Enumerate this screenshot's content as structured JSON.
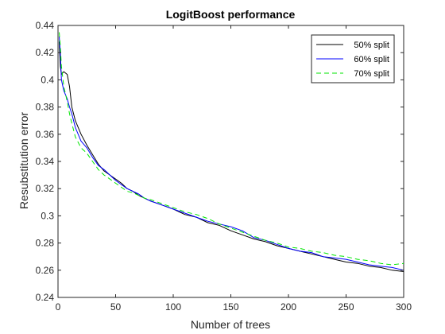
{
  "chart_data": {
    "type": "line",
    "title": "LogitBoost performance",
    "xlabel": "Number of trees",
    "ylabel": "Resubstitution error",
    "xlim": [
      0,
      300
    ],
    "ylim": [
      0.24,
      0.44
    ],
    "xticks": [
      0,
      50,
      100,
      150,
      200,
      250,
      300
    ],
    "yticks": [
      0.24,
      0.26,
      0.28,
      0.3,
      0.32,
      0.34,
      0.36,
      0.38,
      0.4,
      0.42,
      0.44
    ],
    "xtick_labels": [
      "0",
      "50",
      "100",
      "150",
      "200",
      "250",
      "300"
    ],
    "ytick_labels": [
      "0.24",
      "0.26",
      "0.28",
      "0.3",
      "0.32",
      "0.34",
      "0.36",
      "0.38",
      "0.4",
      "0.42",
      "0.44"
    ],
    "grid": false,
    "legend_position": "top-right",
    "series": [
      {
        "name": "50% split",
        "color": "#000000",
        "line_style": "solid",
        "x": [
          1,
          2,
          3,
          5,
          8,
          10,
          12,
          15,
          20,
          25,
          30,
          35,
          40,
          45,
          50,
          55,
          60,
          65,
          70,
          75,
          80,
          90,
          100,
          110,
          120,
          130,
          140,
          150,
          160,
          170,
          180,
          190,
          200,
          210,
          220,
          230,
          240,
          250,
          260,
          270,
          280,
          290,
          300
        ],
        "y": [
          0.428,
          0.41,
          0.404,
          0.406,
          0.404,
          0.395,
          0.38,
          0.37,
          0.36,
          0.352,
          0.345,
          0.338,
          0.333,
          0.33,
          0.327,
          0.324,
          0.32,
          0.318,
          0.315,
          0.313,
          0.311,
          0.308,
          0.305,
          0.301,
          0.299,
          0.295,
          0.293,
          0.289,
          0.286,
          0.283,
          0.281,
          0.278,
          0.276,
          0.274,
          0.272,
          0.27,
          0.268,
          0.266,
          0.265,
          0.263,
          0.262,
          0.26,
          0.259
        ]
      },
      {
        "name": "60% split",
        "color": "#0000ff",
        "line_style": "solid",
        "x": [
          1,
          2,
          3,
          5,
          8,
          10,
          12,
          15,
          20,
          25,
          30,
          35,
          40,
          45,
          50,
          55,
          60,
          65,
          70,
          75,
          80,
          90,
          100,
          110,
          120,
          130,
          140,
          150,
          160,
          170,
          180,
          190,
          200,
          210,
          220,
          230,
          240,
          250,
          260,
          270,
          280,
          290,
          300
        ],
        "y": [
          0.432,
          0.42,
          0.4,
          0.392,
          0.386,
          0.38,
          0.375,
          0.365,
          0.355,
          0.35,
          0.343,
          0.337,
          0.334,
          0.33,
          0.326,
          0.323,
          0.32,
          0.318,
          0.316,
          0.313,
          0.311,
          0.308,
          0.305,
          0.302,
          0.299,
          0.296,
          0.294,
          0.292,
          0.289,
          0.284,
          0.282,
          0.279,
          0.276,
          0.274,
          0.273,
          0.27,
          0.269,
          0.268,
          0.266,
          0.264,
          0.263,
          0.262,
          0.26
        ]
      },
      {
        "name": "70% split",
        "color": "#00e600",
        "line_style": "dashed",
        "x": [
          1,
          2,
          3,
          5,
          8,
          10,
          12,
          15,
          20,
          25,
          30,
          35,
          40,
          45,
          50,
          55,
          60,
          65,
          70,
          75,
          80,
          90,
          100,
          110,
          120,
          130,
          140,
          150,
          160,
          170,
          180,
          190,
          200,
          210,
          220,
          230,
          240,
          250,
          260,
          270,
          280,
          290,
          300
        ],
        "y": [
          0.435,
          0.425,
          0.41,
          0.395,
          0.384,
          0.375,
          0.368,
          0.358,
          0.35,
          0.346,
          0.34,
          0.334,
          0.33,
          0.327,
          0.324,
          0.321,
          0.318,
          0.317,
          0.315,
          0.313,
          0.312,
          0.309,
          0.306,
          0.303,
          0.301,
          0.298,
          0.294,
          0.291,
          0.288,
          0.285,
          0.282,
          0.28,
          0.277,
          0.276,
          0.274,
          0.273,
          0.271,
          0.27,
          0.268,
          0.267,
          0.265,
          0.264,
          0.265
        ]
      }
    ]
  }
}
